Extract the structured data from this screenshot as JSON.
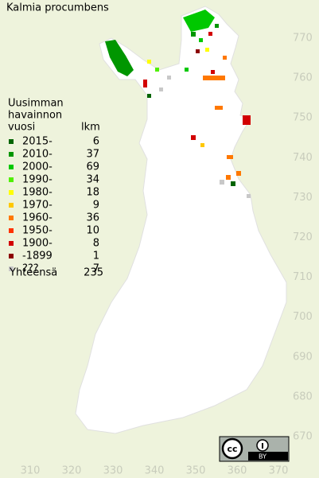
{
  "title": "Kalmia procumbens",
  "legend": {
    "heading": [
      "Uusimman",
      "havainnon"
    ],
    "col_year": "vuosi",
    "col_count": "lkm",
    "entries": [
      {
        "label": "2015-",
        "count": 6,
        "color": "#006400"
      },
      {
        "label": "2010-",
        "count": 37,
        "color": "#009600"
      },
      {
        "label": "2000-",
        "count": 69,
        "color": "#00c800"
      },
      {
        "label": "1990-",
        "count": 34,
        "color": "#50f000"
      },
      {
        "label": "1980-",
        "count": 18,
        "color": "#ffff00"
      },
      {
        "label": "1970-",
        "count": 9,
        "color": "#ffc800"
      },
      {
        "label": "1960-",
        "count": 36,
        "color": "#ff7800"
      },
      {
        "label": "1950-",
        "count": 10,
        "color": "#ff3200"
      },
      {
        "label": "1900-",
        "count": 8,
        "color": "#d20000"
      },
      {
        "label": "-1899",
        "count": 1,
        "color": "#8c0000"
      },
      {
        "label": "???",
        "count": 7,
        "color": "#c8c8c8"
      }
    ],
    "total_label": "Yhteensä",
    "total": 235
  },
  "grid": {
    "northing": [
      770,
      760,
      750,
      740,
      730,
      720,
      710,
      700,
      690,
      680,
      670
    ],
    "easting": [
      310,
      320,
      330,
      340,
      350,
      360,
      370
    ]
  },
  "license": "BY"
}
